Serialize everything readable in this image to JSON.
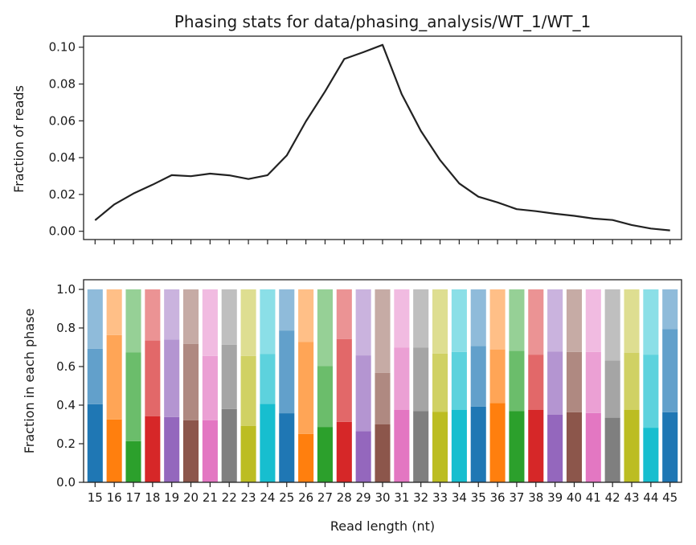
{
  "title": "Phasing stats for data/phasing_analysis/WT_1/WT_1",
  "chart_data": [
    {
      "type": "line",
      "ylabel": "Fraction of reads",
      "ylim": [
        -0.0045,
        0.106
      ],
      "yticks": [
        0.0,
        0.02,
        0.04,
        0.06,
        0.08,
        0.1
      ],
      "ytick_labels": [
        "0.00",
        "0.02",
        "0.04",
        "0.06",
        "0.08",
        "0.10"
      ],
      "x": [
        15,
        16,
        17,
        18,
        19,
        20,
        21,
        22,
        23,
        24,
        25,
        26,
        27,
        28,
        29,
        30,
        31,
        32,
        33,
        34,
        35,
        36,
        37,
        38,
        39,
        40,
        41,
        42,
        43,
        44,
        45
      ],
      "values": [
        0.006,
        0.0146,
        0.0205,
        0.0253,
        0.0305,
        0.0299,
        0.0313,
        0.0304,
        0.0284,
        0.0305,
        0.0412,
        0.0597,
        0.076,
        0.0936,
        0.0973,
        0.1013,
        0.0745,
        0.0545,
        0.0387,
        0.026,
        0.0188,
        0.0157,
        0.012,
        0.0109,
        0.0095,
        0.0084,
        0.0069,
        0.0061,
        0.0034,
        0.0015,
        0.0005
      ],
      "color": "#222222"
    },
    {
      "type": "bar",
      "stacked": true,
      "xlabel": "Read length (nt)",
      "ylabel": "Fraction in each phase",
      "ylim": [
        0,
        1.05
      ],
      "yticks": [
        0.0,
        0.2,
        0.4,
        0.6,
        0.8,
        1.0
      ],
      "ytick_labels": [
        "0.0",
        "0.2",
        "0.4",
        "0.6",
        "0.8",
        "1.0"
      ],
      "categories": [
        "15",
        "16",
        "17",
        "18",
        "19",
        "20",
        "21",
        "22",
        "23",
        "24",
        "25",
        "26",
        "27",
        "28",
        "29",
        "30",
        "31",
        "32",
        "33",
        "34",
        "35",
        "36",
        "37",
        "38",
        "39",
        "40",
        "41",
        "42",
        "43",
        "44",
        "45"
      ],
      "phase_bounds": [
        [
          0.405,
          0.692
        ],
        [
          0.326,
          0.763
        ],
        [
          0.213,
          0.673
        ],
        [
          0.343,
          0.735
        ],
        [
          0.338,
          0.74
        ],
        [
          0.322,
          0.718
        ],
        [
          0.322,
          0.655
        ],
        [
          0.38,
          0.713
        ],
        [
          0.293,
          0.655
        ],
        [
          0.406,
          0.666
        ],
        [
          0.358,
          0.787
        ],
        [
          0.251,
          0.727
        ],
        [
          0.287,
          0.602
        ],
        [
          0.313,
          0.743
        ],
        [
          0.265,
          0.658
        ],
        [
          0.3,
          0.568
        ],
        [
          0.375,
          0.698
        ],
        [
          0.37,
          0.698
        ],
        [
          0.366,
          0.667
        ],
        [
          0.375,
          0.676
        ],
        [
          0.392,
          0.706
        ],
        [
          0.411,
          0.689
        ],
        [
          0.37,
          0.682
        ],
        [
          0.375,
          0.662
        ],
        [
          0.35,
          0.677
        ],
        [
          0.363,
          0.676
        ],
        [
          0.359,
          0.676
        ],
        [
          0.335,
          0.632
        ],
        [
          0.375,
          0.671
        ],
        [
          0.283,
          0.662
        ],
        [
          0.363,
          0.795
        ]
      ],
      "top": 1.0,
      "palette": [
        "#1f77b4",
        "#ff7f0e",
        "#2ca02c",
        "#d62728",
        "#9467bd",
        "#8c564b",
        "#e377c2",
        "#7f7f7f",
        "#bcbd22",
        "#17becf"
      ],
      "phase_opacity": [
        1.0,
        0.7,
        0.5
      ]
    }
  ]
}
